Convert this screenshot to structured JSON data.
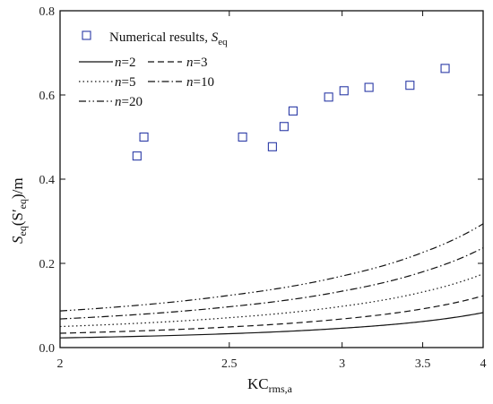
{
  "chart_data": {
    "type": "scatter",
    "x_scale": "reciprocal",
    "xlabel": {
      "main": "KC",
      "sub": "rms,a"
    },
    "ylabel": {
      "S1": "S",
      "sub1": "eq",
      "mid": "(S",
      "prime": "′",
      "sub2": "eq",
      "tail": ")/m"
    },
    "xlim": [
      2,
      4
    ],
    "ylim": [
      0,
      0.8
    ],
    "x_ticks": [
      2,
      2.5,
      3,
      3.5,
      4
    ],
    "x_tick_labels": [
      "2",
      "2.5",
      "3",
      "3.5",
      "4"
    ],
    "y_ticks": [
      0,
      0.2,
      0.4,
      0.6,
      0.8
    ],
    "y_tick_labels": [
      "0.0",
      "0.2",
      "0.4",
      "0.6",
      "0.8"
    ],
    "grid": false,
    "legend_position": "top-left",
    "legend": {
      "numerical": {
        "text": "Numerical results, ",
        "sym": "S",
        "sub": "eq"
      },
      "n2": {
        "n": "n",
        "eq": "=2"
      },
      "n3": {
        "n": "n",
        "eq": "=3"
      },
      "n5": {
        "n": "n",
        "eq": "=5"
      },
      "n10": {
        "n": "n",
        "eq": "=10"
      },
      "n20": {
        "n": "n",
        "eq": "=20"
      }
    },
    "scatter_series": {
      "marker": "open-square",
      "color": "#2b3aa6",
      "points": [
        {
          "x": 2.2,
          "y": 0.455
        },
        {
          "x": 2.22,
          "y": 0.5
        },
        {
          "x": 2.55,
          "y": 0.5
        },
        {
          "x": 2.67,
          "y": 0.477
        },
        {
          "x": 2.72,
          "y": 0.525
        },
        {
          "x": 2.76,
          "y": 0.562
        },
        {
          "x": 2.93,
          "y": 0.595
        },
        {
          "x": 3.01,
          "y": 0.61
        },
        {
          "x": 3.15,
          "y": 0.618
        },
        {
          "x": 3.41,
          "y": 0.623
        },
        {
          "x": 3.67,
          "y": 0.663
        }
      ]
    },
    "line_series": [
      {
        "key": "n2",
        "dash": "solid",
        "points": [
          [
            2,
            0.023
          ],
          [
            2.5,
            0.033
          ],
          [
            3,
            0.046
          ],
          [
            3.5,
            0.062
          ],
          [
            4,
            0.083
          ]
        ]
      },
      {
        "key": "n3",
        "dash": "dashed",
        "points": [
          [
            2,
            0.034
          ],
          [
            2.5,
            0.049
          ],
          [
            3,
            0.068
          ],
          [
            3.5,
            0.092
          ],
          [
            4,
            0.123
          ]
        ]
      },
      {
        "key": "n5",
        "dash": "dotted",
        "points": [
          [
            2,
            0.05
          ],
          [
            2.5,
            0.071
          ],
          [
            3,
            0.098
          ],
          [
            3.5,
            0.132
          ],
          [
            4,
            0.175
          ]
        ]
      },
      {
        "key": "n10",
        "dash": "dashdot",
        "points": [
          [
            2,
            0.068
          ],
          [
            2.5,
            0.097
          ],
          [
            3,
            0.134
          ],
          [
            3.5,
            0.18
          ],
          [
            4,
            0.237
          ]
        ]
      },
      {
        "key": "n20",
        "dash": "dashdotdot",
        "points": [
          [
            2,
            0.087
          ],
          [
            2.5,
            0.124
          ],
          [
            3,
            0.17
          ],
          [
            3.5,
            0.226
          ],
          [
            4,
            0.294
          ]
        ]
      }
    ]
  }
}
